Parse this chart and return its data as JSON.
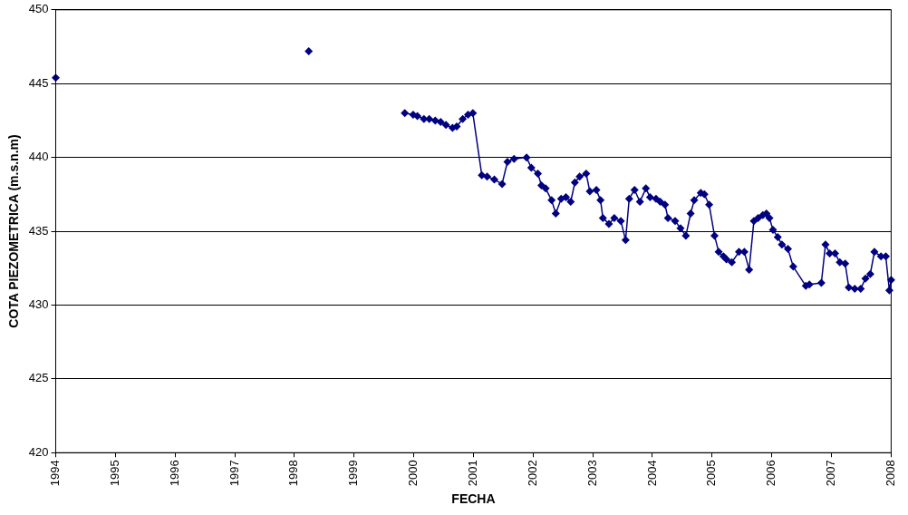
{
  "chart_data": {
    "type": "line",
    "xlabel": "FECHA",
    "ylabel": "COTA PIEZOMETRICA (m.s.n.m)",
    "xlim": [
      1994,
      2008
    ],
    "xticks": [
      1994,
      1995,
      1996,
      1997,
      1998,
      1999,
      2000,
      2001,
      2002,
      2003,
      2004,
      2005,
      2006,
      2007,
      2008
    ],
    "ylim": [
      420,
      450
    ],
    "yticks": [
      420,
      425,
      430,
      435,
      440,
      445,
      450
    ],
    "grid": "y",
    "legend": false,
    "marker": "diamond",
    "line_style": "solid",
    "series": [
      {
        "type": "scatter",
        "color": "#000080",
        "x": [
          1994.0,
          1998.24
        ],
        "values": [
          445.4,
          447.2
        ]
      },
      {
        "type": "line",
        "color": "#000080",
        "x": [
          1999.85,
          1999.99,
          2000.06,
          2000.17,
          2000.26,
          2000.36,
          2000.45,
          2000.54,
          2000.65,
          2000.72,
          2000.82,
          2000.91,
          2000.99,
          2001.14,
          2001.23,
          2001.35,
          2001.48,
          2001.57,
          2001.68,
          2001.89,
          2001.97,
          2002.08,
          2002.14,
          2002.21,
          2002.31,
          2002.38,
          2002.47,
          2002.55,
          2002.63,
          2002.7,
          2002.78,
          2002.89,
          2002.95,
          2003.06,
          2003.13,
          2003.17,
          2003.27,
          2003.36,
          2003.47,
          2003.55,
          2003.61,
          2003.7,
          2003.79,
          2003.89,
          2003.96,
          2004.06,
          2004.13,
          2004.21,
          2004.26,
          2004.38,
          2004.47,
          2004.56,
          2004.64,
          2004.7,
          2004.81,
          2004.87,
          2004.95,
          2005.04,
          2005.11,
          2005.19,
          2005.24,
          2005.33,
          2005.45,
          2005.54,
          2005.62,
          2005.7,
          2005.77,
          2005.85,
          2005.91,
          2005.96,
          2006.02,
          2006.1,
          2006.17,
          2006.27,
          2006.36,
          2006.57,
          2006.63,
          2006.83,
          2006.9,
          2006.97,
          2007.06,
          2007.14,
          2007.23,
          2007.29,
          2007.39,
          2007.49,
          2007.57,
          2007.65,
          2007.72,
          2007.83,
          2007.91,
          2007.97,
          2008.0
        ],
        "values": [
          443.0,
          442.9,
          442.8,
          442.6,
          442.6,
          442.5,
          442.4,
          442.2,
          442.0,
          442.1,
          442.6,
          442.9,
          443.0,
          438.8,
          438.7,
          438.5,
          438.2,
          439.7,
          439.9,
          440.0,
          439.3,
          438.9,
          438.1,
          437.9,
          437.1,
          436.2,
          437.2,
          437.3,
          437.0,
          438.3,
          438.7,
          438.9,
          437.7,
          437.8,
          437.1,
          435.9,
          435.5,
          435.9,
          435.7,
          434.4,
          437.2,
          437.8,
          437.0,
          437.9,
          437.3,
          437.2,
          437.0,
          436.8,
          435.9,
          435.7,
          435.2,
          434.7,
          436.2,
          437.1,
          437.6,
          437.5,
          436.8,
          434.7,
          433.6,
          433.3,
          433.1,
          432.9,
          433.6,
          433.6,
          432.4,
          435.7,
          435.9,
          436.1,
          436.2,
          435.9,
          435.1,
          434.6,
          434.1,
          433.8,
          432.6,
          431.3,
          431.4,
          431.5,
          434.1,
          433.5,
          433.5,
          432.9,
          432.8,
          431.2,
          431.1,
          431.1,
          431.8,
          432.1,
          433.6,
          433.3,
          433.3,
          431.0,
          431.7
        ]
      }
    ]
  }
}
